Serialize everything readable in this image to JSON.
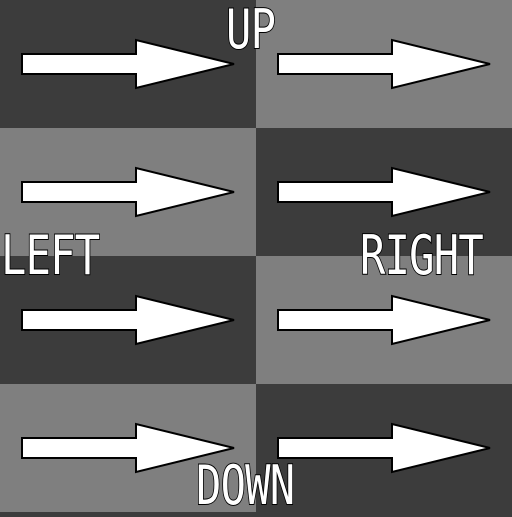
{
  "labels": {
    "up": "UP",
    "left": "LEFT",
    "right": "RIGHT",
    "down": "DOWN"
  },
  "colors": {
    "dark_tile": "#3c3c3c",
    "light_tile": "#7f7f7f",
    "arrow_fill": "#ffffff",
    "arrow_stroke": "#000000"
  },
  "grid": {
    "rows": 4,
    "cols": 2,
    "pattern": [
      [
        "dark",
        "light"
      ],
      [
        "light",
        "dark"
      ],
      [
        "dark",
        "light"
      ],
      [
        "light",
        "dark"
      ]
    ]
  },
  "arrow_icon": "right-arrow-icon"
}
